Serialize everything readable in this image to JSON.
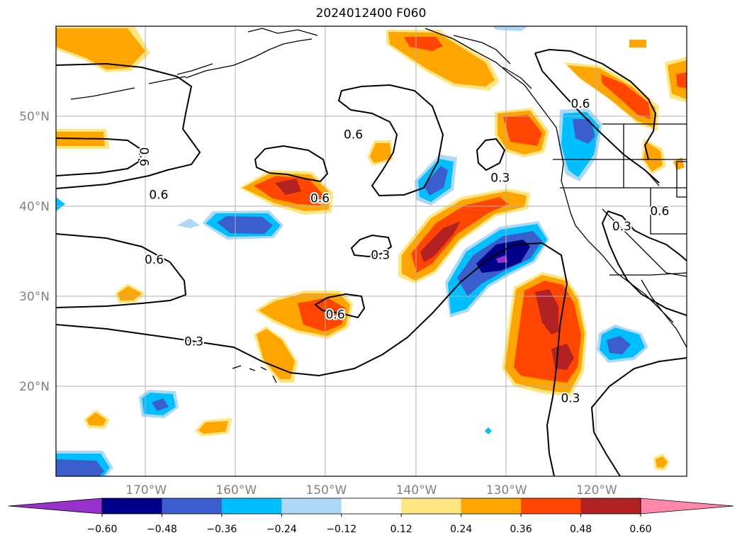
{
  "title": "2024012400 F060",
  "map": {
    "extent": {
      "lon_min": -180,
      "lon_max": -110,
      "lat_min": 10,
      "lat_max": 60
    },
    "grid": true,
    "lon_ticks": [
      {
        "value": -170,
        "label": "170°W"
      },
      {
        "value": -160,
        "label": "160°W"
      },
      {
        "value": -150,
        "label": "150°W"
      },
      {
        "value": -140,
        "label": "140°W"
      },
      {
        "value": -130,
        "label": "130°W"
      },
      {
        "value": -120,
        "label": "120°W"
      }
    ],
    "lat_ticks": [
      {
        "value": 20,
        "label": "20°N"
      },
      {
        "value": 30,
        "label": "30°N"
      },
      {
        "value": 40,
        "label": "40°N"
      },
      {
        "value": 50,
        "label": "50°N"
      }
    ],
    "contour_labels": [
      {
        "text": "0.6",
        "lon": -168.6,
        "lat": 41.3
      },
      {
        "text": "0.6",
        "lon": -170.2,
        "lat": 45.5,
        "rotate": 90
      },
      {
        "text": "0.6",
        "lon": -169.1,
        "lat": 34.1
      },
      {
        "text": "0.3",
        "lon": -164.7,
        "lat": 25.0
      },
      {
        "text": "0.6",
        "lon": -150.7,
        "lat": 40.9
      },
      {
        "text": "0.6",
        "lon": -147.0,
        "lat": 48.0
      },
      {
        "text": "0.3",
        "lon": -144.0,
        "lat": 34.6
      },
      {
        "text": "0.6",
        "lon": -149.0,
        "lat": 28.0
      },
      {
        "text": "0.3",
        "lon": -130.7,
        "lat": 43.2
      },
      {
        "text": "0.6",
        "lon": -121.8,
        "lat": 51.4
      },
      {
        "text": "0.3",
        "lon": -117.2,
        "lat": 37.8
      },
      {
        "text": "0.6",
        "lon": -113.0,
        "lat": 39.5
      },
      {
        "text": "0.3",
        "lon": -122.9,
        "lat": 18.7
      }
    ]
  },
  "colorbar": {
    "ticks": [
      "−0.60",
      "−0.48",
      "−0.36",
      "−0.24",
      "−0.12",
      "0.12",
      "0.24",
      "0.36",
      "0.48",
      "0.60"
    ],
    "colors": [
      "#9932cc",
      "#00008b",
      "#3a5fcd",
      "#00bfff",
      "#add8f6",
      "#ffffff",
      "#ffe680",
      "#ffa500",
      "#ff4500",
      "#b22222",
      "#ff88aa"
    ]
  }
}
